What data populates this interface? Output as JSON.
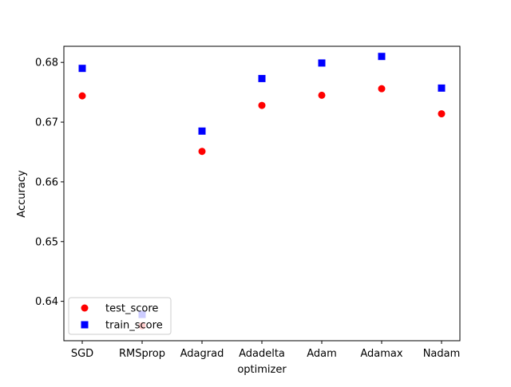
{
  "chart_data": {
    "type": "scatter",
    "title": "",
    "xlabel": "optimizer",
    "ylabel": "Accuracy",
    "categories": [
      "SGD",
      "RMSprop",
      "Adagrad",
      "Adadelta",
      "Adam",
      "Adamax",
      "Nadam"
    ],
    "ylim": [
      0.6334,
      0.6827
    ],
    "yticks": [
      "0.64",
      "0.65",
      "0.66",
      "0.67",
      "0.68"
    ],
    "yticks_values": [
      0.64,
      0.65,
      0.66,
      0.67,
      0.68
    ],
    "grid": false,
    "legend_position": "lower-left",
    "series": [
      {
        "name": "test_score",
        "marker": "circle",
        "color": "#ff0000",
        "values": [
          0.6744,
          0.6359,
          0.6651,
          0.6728,
          0.6745,
          0.6756,
          0.6714
        ]
      },
      {
        "name": "train_score",
        "marker": "square",
        "color": "#0000ff",
        "values": [
          0.679,
          0.6378,
          0.6685,
          0.6773,
          0.6799,
          0.681,
          0.6757
        ]
      }
    ]
  }
}
